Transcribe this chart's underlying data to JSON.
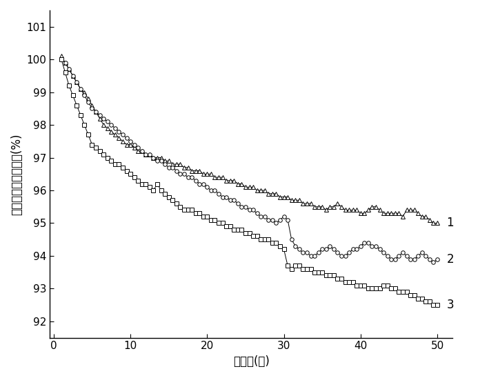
{
  "xlabel": "循环数(次)",
  "ylabel": "占初始容量的百分数(%)",
  "xlim": [
    -0.5,
    52
  ],
  "ylim": [
    91.5,
    101.5
  ],
  "xticks": [
    0,
    10,
    20,
    30,
    40,
    50
  ],
  "yticks": [
    92,
    93,
    94,
    95,
    96,
    97,
    98,
    99,
    100,
    101
  ],
  "series1_label": "1",
  "series2_label": "2",
  "series3_label": "3",
  "series1_x": [
    1,
    1.5,
    2,
    2.5,
    3,
    3.5,
    4,
    4.5,
    5,
    5.5,
    6,
    6.5,
    7,
    7.5,
    8,
    8.5,
    9,
    9.5,
    10,
    10.5,
    11,
    11.5,
    12,
    12.5,
    13,
    13.5,
    14,
    14.5,
    15,
    15.5,
    16,
    16.5,
    17,
    17.5,
    18,
    18.5,
    19,
    19.5,
    20,
    20.5,
    21,
    21.5,
    22,
    22.5,
    23,
    23.5,
    24,
    24.5,
    25,
    25.5,
    26,
    26.5,
    27,
    27.5,
    28,
    28.5,
    29,
    29.5,
    30,
    30.5,
    31,
    31.5,
    32,
    32.5,
    33,
    33.5,
    34,
    34.5,
    35,
    35.5,
    36,
    36.5,
    37,
    37.5,
    38,
    38.5,
    39,
    39.5,
    40,
    40.5,
    41,
    41.5,
    42,
    42.5,
    43,
    43.5,
    44,
    44.5,
    45,
    45.5,
    46,
    46.5,
    47,
    47.5,
    48,
    48.5,
    49,
    49.5,
    50
  ],
  "series1_y": [
    100.1,
    99.9,
    99.7,
    99.5,
    99.3,
    99.1,
    99.0,
    98.8,
    98.6,
    98.4,
    98.2,
    98.0,
    97.9,
    97.8,
    97.7,
    97.6,
    97.5,
    97.4,
    97.4,
    97.3,
    97.2,
    97.2,
    97.1,
    97.1,
    97.0,
    97.0,
    97.0,
    96.9,
    96.9,
    96.8,
    96.8,
    96.8,
    96.7,
    96.7,
    96.6,
    96.6,
    96.6,
    96.5,
    96.5,
    96.5,
    96.4,
    96.4,
    96.4,
    96.3,
    96.3,
    96.3,
    96.2,
    96.2,
    96.1,
    96.1,
    96.1,
    96.0,
    96.0,
    96.0,
    95.9,
    95.9,
    95.9,
    95.8,
    95.8,
    95.8,
    95.7,
    95.7,
    95.7,
    95.6,
    95.6,
    95.6,
    95.5,
    95.5,
    95.5,
    95.4,
    95.5,
    95.5,
    95.6,
    95.5,
    95.4,
    95.4,
    95.4,
    95.4,
    95.3,
    95.3,
    95.4,
    95.5,
    95.5,
    95.4,
    95.3,
    95.3,
    95.3,
    95.3,
    95.3,
    95.2,
    95.4,
    95.4,
    95.4,
    95.3,
    95.2,
    95.2,
    95.1,
    95.0,
    95.0
  ],
  "series2_x": [
    1,
    1.5,
    2,
    2.5,
    3,
    3.5,
    4,
    4.5,
    5,
    5.5,
    6,
    6.5,
    7,
    7.5,
    8,
    8.5,
    9,
    9.5,
    10,
    10.5,
    11,
    11.5,
    12,
    12.5,
    13,
    13.5,
    14,
    14.5,
    15,
    15.5,
    16,
    16.5,
    17,
    17.5,
    18,
    18.5,
    19,
    19.5,
    20,
    20.5,
    21,
    21.5,
    22,
    22.5,
    23,
    23.5,
    24,
    24.5,
    25,
    25.5,
    26,
    26.5,
    27,
    27.5,
    28,
    28.5,
    29,
    29.5,
    30,
    30.5,
    31,
    31.5,
    32,
    32.5,
    33,
    33.5,
    34,
    34.5,
    35,
    35.5,
    36,
    36.5,
    37,
    37.5,
    38,
    38.5,
    39,
    39.5,
    40,
    40.5,
    41,
    41.5,
    42,
    42.5,
    43,
    43.5,
    44,
    44.5,
    45,
    45.5,
    46,
    46.5,
    47,
    47.5,
    48,
    48.5,
    49,
    49.5,
    50
  ],
  "series2_y": [
    100.0,
    99.9,
    99.7,
    99.5,
    99.3,
    99.1,
    98.9,
    98.7,
    98.5,
    98.4,
    98.3,
    98.2,
    98.1,
    98.0,
    97.9,
    97.8,
    97.7,
    97.6,
    97.5,
    97.4,
    97.3,
    97.2,
    97.1,
    97.1,
    97.0,
    96.9,
    96.9,
    96.8,
    96.7,
    96.7,
    96.6,
    96.5,
    96.5,
    96.4,
    96.4,
    96.3,
    96.2,
    96.2,
    96.1,
    96.0,
    96.0,
    95.9,
    95.8,
    95.8,
    95.7,
    95.7,
    95.6,
    95.5,
    95.5,
    95.4,
    95.4,
    95.3,
    95.2,
    95.2,
    95.1,
    95.1,
    95.0,
    95.1,
    95.2,
    95.1,
    94.5,
    94.3,
    94.2,
    94.1,
    94.1,
    94.0,
    94.0,
    94.1,
    94.2,
    94.2,
    94.3,
    94.2,
    94.1,
    94.0,
    94.0,
    94.1,
    94.2,
    94.2,
    94.3,
    94.4,
    94.4,
    94.3,
    94.3,
    94.2,
    94.1,
    94.0,
    93.9,
    93.9,
    94.0,
    94.1,
    94.0,
    93.9,
    93.9,
    94.0,
    94.1,
    94.0,
    93.9,
    93.8,
    93.9
  ],
  "series3_x": [
    1,
    1.5,
    2,
    2.5,
    3,
    3.5,
    4,
    4.5,
    5,
    5.5,
    6,
    6.5,
    7,
    7.5,
    8,
    8.5,
    9,
    9.5,
    10,
    10.5,
    11,
    11.5,
    12,
    12.5,
    13,
    13.5,
    14,
    14.5,
    15,
    15.5,
    16,
    16.5,
    17,
    17.5,
    18,
    18.5,
    19,
    19.5,
    20,
    20.5,
    21,
    21.5,
    22,
    22.5,
    23,
    23.5,
    24,
    24.5,
    25,
    25.5,
    26,
    26.5,
    27,
    27.5,
    28,
    28.5,
    29,
    29.5,
    30,
    30.5,
    31,
    31.5,
    32,
    32.5,
    33,
    33.5,
    34,
    34.5,
    35,
    35.5,
    36,
    36.5,
    37,
    37.5,
    38,
    38.5,
    39,
    39.5,
    40,
    40.5,
    41,
    41.5,
    42,
    42.5,
    43,
    43.5,
    44,
    44.5,
    45,
    45.5,
    46,
    46.5,
    47,
    47.5,
    48,
    48.5,
    49,
    49.5,
    50
  ],
  "series3_y": [
    100.0,
    99.6,
    99.2,
    98.9,
    98.6,
    98.3,
    98.0,
    97.7,
    97.4,
    97.3,
    97.2,
    97.1,
    97.0,
    96.9,
    96.8,
    96.8,
    96.7,
    96.6,
    96.5,
    96.4,
    96.3,
    96.2,
    96.2,
    96.1,
    96.0,
    96.2,
    96.0,
    95.9,
    95.8,
    95.7,
    95.6,
    95.5,
    95.4,
    95.4,
    95.4,
    95.3,
    95.3,
    95.2,
    95.2,
    95.1,
    95.1,
    95.0,
    95.0,
    94.9,
    94.9,
    94.8,
    94.8,
    94.8,
    94.7,
    94.7,
    94.6,
    94.6,
    94.5,
    94.5,
    94.5,
    94.4,
    94.4,
    94.3,
    94.2,
    93.7,
    93.6,
    93.7,
    93.7,
    93.6,
    93.6,
    93.6,
    93.5,
    93.5,
    93.5,
    93.4,
    93.4,
    93.4,
    93.3,
    93.3,
    93.2,
    93.2,
    93.2,
    93.1,
    93.1,
    93.1,
    93.0,
    93.0,
    93.0,
    93.0,
    93.1,
    93.1,
    93.0,
    93.0,
    92.9,
    92.9,
    92.9,
    92.8,
    92.8,
    92.7,
    92.7,
    92.6,
    92.6,
    92.5,
    92.5
  ],
  "background_color": "#ffffff",
  "line_color": "#000000",
  "marker_size": 4,
  "label_fontsize": 12,
  "tick_fontsize": 11,
  "axis_fontsize": 12
}
